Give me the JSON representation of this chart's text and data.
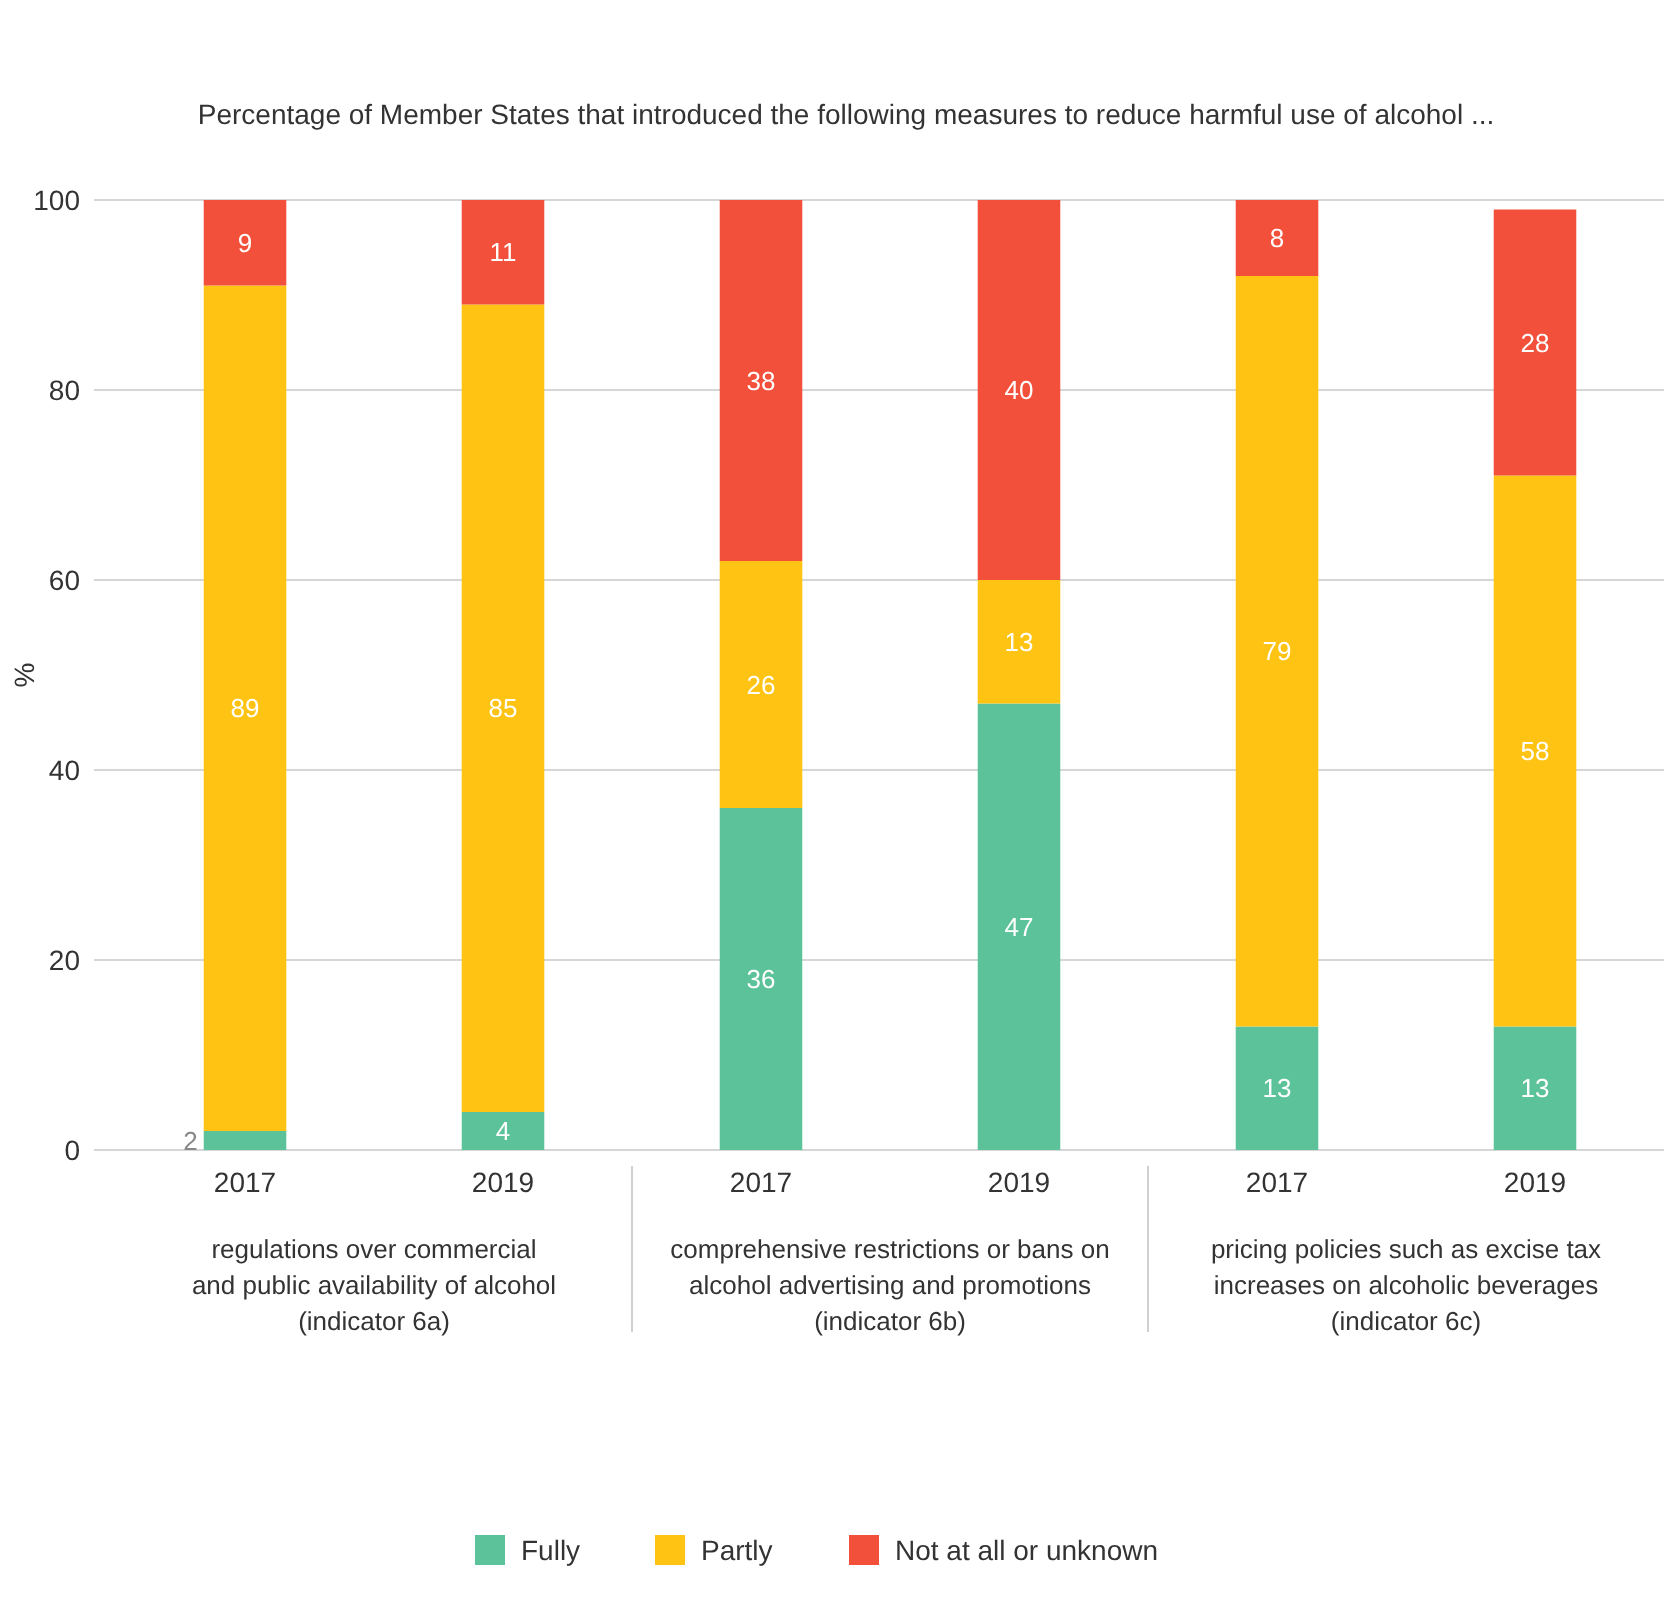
{
  "chart_data": {
    "type": "bar",
    "stacked": true,
    "title": "Percentage of Member States that introduced the following measures to reduce harmful use of alcohol ...",
    "ylabel": "%",
    "categories": [
      "2017",
      "2019",
      "2017",
      "2019",
      "2017",
      "2019"
    ],
    "series": [
      {
        "name": "Fully",
        "color": "#5cc29a",
        "values": [
          2,
          4,
          36,
          47,
          13,
          13
        ]
      },
      {
        "name": "Partly",
        "color": "#fec313",
        "values": [
          89,
          85,
          26,
          13,
          79,
          58
        ]
      },
      {
        "name": "Not at all or unknown",
        "color": "#f2503a",
        "values": [
          9,
          11,
          38,
          40,
          8,
          28
        ]
      }
    ],
    "ylim": [
      0,
      100
    ],
    "yticks": [
      0,
      20,
      40,
      60,
      80,
      100
    ],
    "grid": "y",
    "legend": "bottom",
    "data_labels": true,
    "annotations": [
      "regulations over commercial\nand public availability of alcohol\n(indicator 6a)",
      "comprehensive restrictions or bans on\nalcohol advertising and promotions\n(indicator 6b)",
      "pricing policies such as excise tax\nincreases on alcoholic beverages\n(indicator 6c)"
    ]
  }
}
